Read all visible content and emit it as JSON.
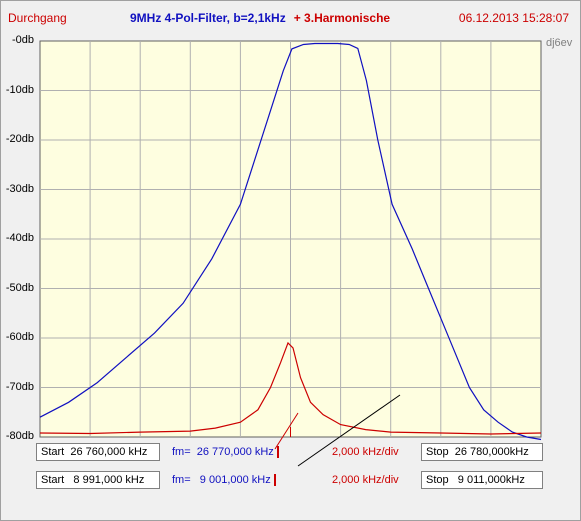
{
  "header": {
    "mode": "Durchgang",
    "title": "9MHz 4-Pol-Filter,  b=2,1kHz",
    "title_extra": "+ 3.Harmonische",
    "timestamp": "06.12.2013 15:28:07"
  },
  "callsign": "dj6ev",
  "colors": {
    "filter": "#1010c0",
    "harmonic": "#cc0000",
    "plot_bg": "#fefee0",
    "grid": "#b0b0b0"
  },
  "chart_data": {
    "type": "line",
    "title": "9MHz 4-Pol-Filter,  b=2,1kHz  + 3.Harmonische",
    "ylabel": "",
    "xlabel": "",
    "ylim": [
      -80,
      0
    ],
    "ytick_labels": [
      "-0db",
      "-10db",
      "-20db",
      "-30db",
      "-40db",
      "-50db",
      "-60db",
      "-70db",
      "-80db"
    ],
    "grid": true,
    "x_divisions": 10,
    "series": [
      {
        "color": "#1010c0",
        "x_khz": [
          8991,
          8992,
          8993,
          8994,
          8995,
          8996,
          8997,
          8998,
          8998.5,
          8999,
          8999.5,
          8999.8,
          9000.2,
          9000.6,
          9001.4,
          9001.8,
          9002.1,
          9002.4,
          9002.8,
          9003.3,
          9004,
          9004.5,
          9005,
          9005.5,
          9006,
          9006.5,
          9007,
          9007.5,
          9008,
          9008.5
        ],
        "y_db": [
          -76,
          -73,
          -69,
          -64,
          -59,
          -53,
          -44,
          -33,
          -24,
          -15,
          -6,
          -1.6,
          -0.7,
          -0.5,
          -0.5,
          -0.7,
          -1.5,
          -8,
          -20,
          -33,
          -42,
          -49,
          -56,
          -63,
          -70,
          -74.5,
          -77,
          -79,
          -80,
          -80.5
        ]
      },
      {
        "color": "#cc0000",
        "x_khz": [
          26760,
          26762,
          26764,
          26766,
          26767,
          26768,
          26768.7,
          26769.2,
          26769.6,
          26769.9,
          26770.1,
          26770.4,
          26770.8,
          26771.3,
          26772,
          26773,
          26774,
          26776,
          26778,
          26780
        ],
        "y_db": [
          -79.2,
          -79.3,
          -79,
          -78.8,
          -78.2,
          -77,
          -74.5,
          -70,
          -65,
          -61,
          -62,
          -68,
          -73,
          -75.5,
          -77.5,
          -78.5,
          -79,
          -79.2,
          -79.4,
          -79.2
        ]
      }
    ]
  },
  "controls": {
    "row1": {
      "start": "Start  26 760,000 kHz",
      "fm": "fm=  26 770,000 kHz",
      "div": "2,000 kHz/div",
      "stop": "Stop  26 780,000kHz"
    },
    "row2": {
      "start": "Start   8 991,000 kHz",
      "fm": "fm=   9 001,000 kHz",
      "div": "2,000 kHz/div",
      "stop": "Stop   9 011,000kHz"
    }
  }
}
